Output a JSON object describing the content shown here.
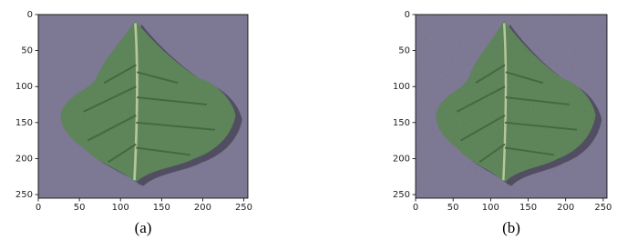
{
  "chart_data": [
    {
      "type": "image",
      "caption": "(a)",
      "xlim": [
        0,
        255
      ],
      "ylim": [
        255,
        0
      ],
      "xticks": [
        0,
        50,
        100,
        150,
        200,
        250
      ],
      "yticks": [
        0,
        50,
        100,
        150,
        200,
        250
      ]
    },
    {
      "type": "image",
      "caption": "(b)",
      "xlim": [
        0,
        255
      ],
      "ylim": [
        255,
        0
      ],
      "xticks": [
        0,
        50,
        100,
        150,
        200,
        250
      ],
      "yticks": [
        0,
        50,
        100,
        150,
        200,
        250
      ]
    }
  ]
}
